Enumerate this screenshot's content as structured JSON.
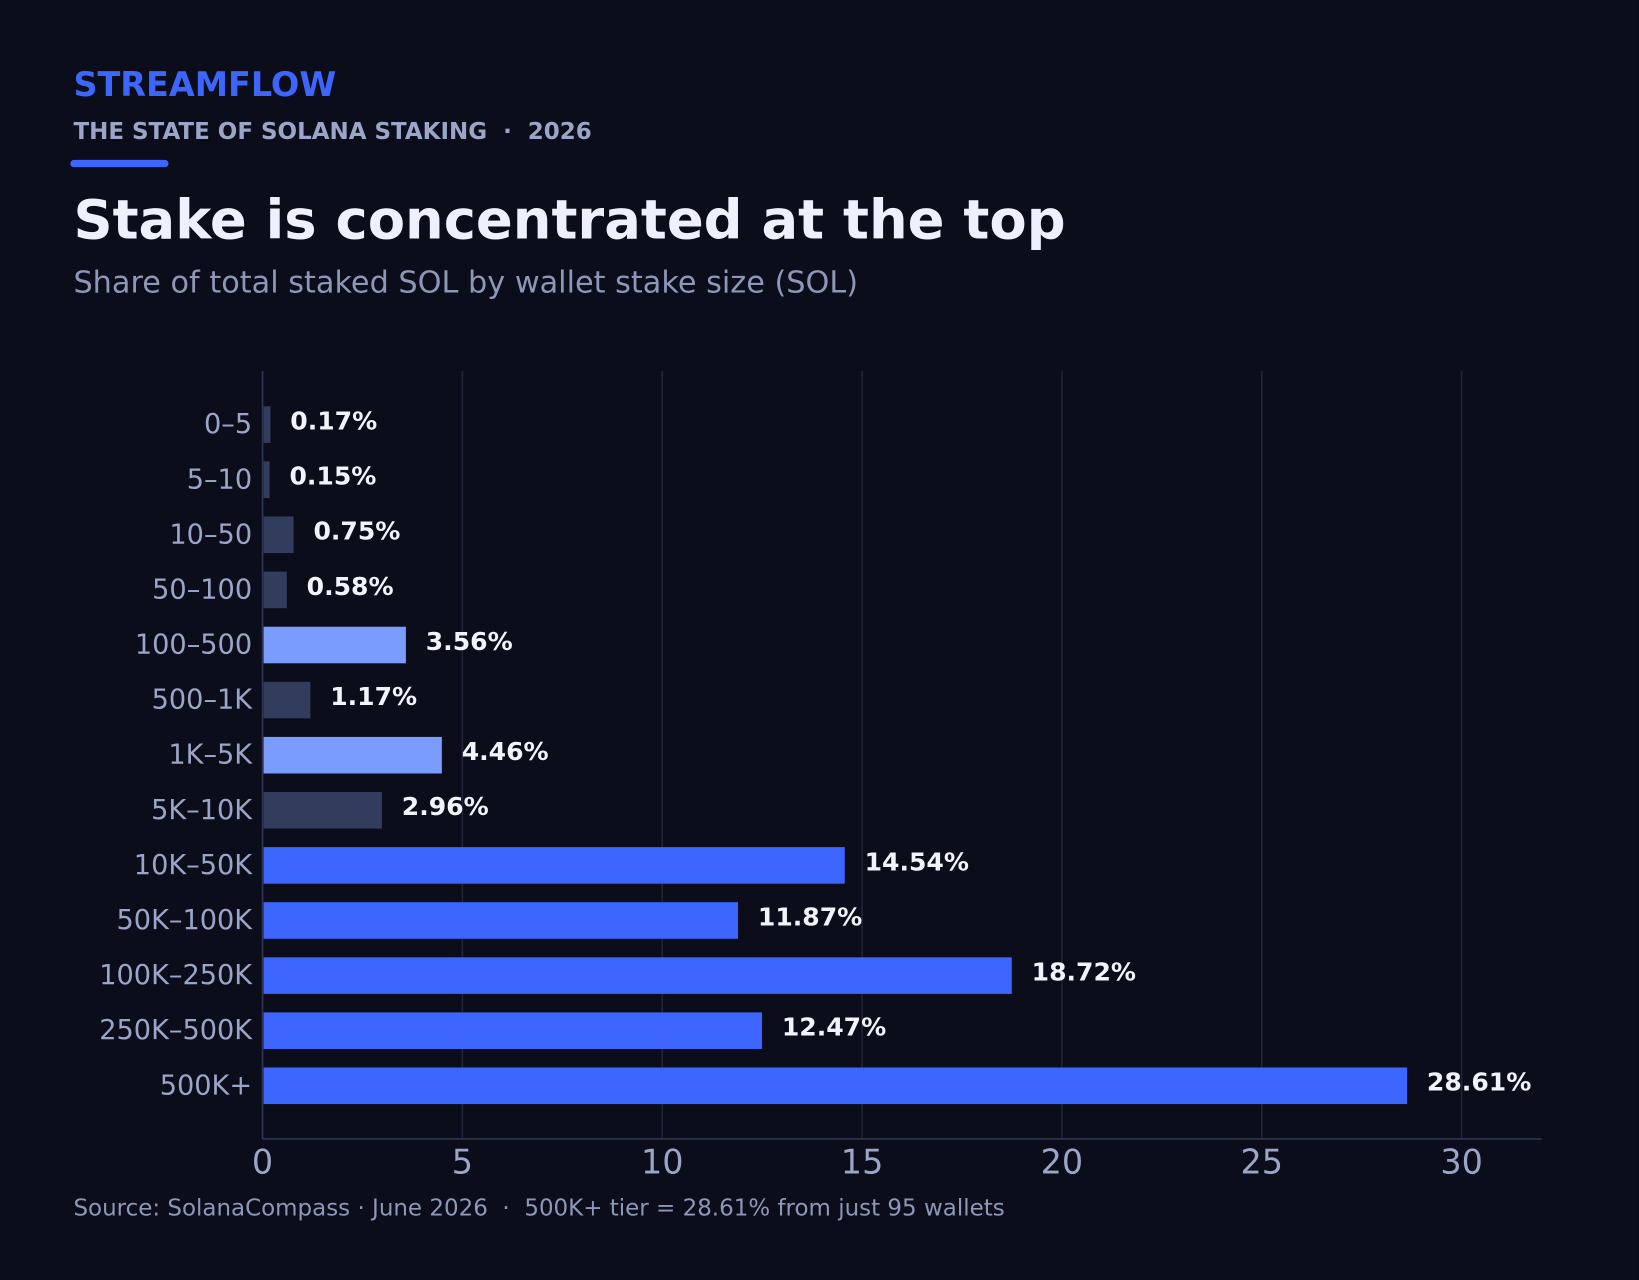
{
  "brand": "STREAMFLOW",
  "kicker": "THE STATE OF SOLANA STAKING  ·  2026",
  "chart_data": {
    "type": "barh",
    "title": "Stake is concentrated at the top",
    "subtitle": "Share of total staked SOL by wallet stake size (SOL)",
    "source": "Source: SolanaCompass · June 2026  ·  500K+ tier = 28.61% from just 95 wallets",
    "categories": [
      "0–5",
      "5–10",
      "10–50",
      "50–100",
      "100–500",
      "500–1K",
      "1K–5K",
      "5K–10K",
      "10K–50K",
      "50K–100K",
      "100K–250K",
      "250K–500K",
      "500K+"
    ],
    "values": [
      0.17,
      0.15,
      0.75,
      0.58,
      3.56,
      1.17,
      4.46,
      2.96,
      14.54,
      11.87,
      18.72,
      12.47,
      28.61
    ],
    "value_labels": [
      "0.17%",
      "0.15%",
      "0.75%",
      "0.58%",
      "3.56%",
      "1.17%",
      "4.46%",
      "2.96%",
      "14.54%",
      "11.87%",
      "18.72%",
      "12.47%",
      "28.61%"
    ],
    "colors": [
      "#323c5c",
      "#323c5c",
      "#323c5c",
      "#323c5c",
      "#7b9cff",
      "#323c5c",
      "#7b9cff",
      "#323c5c",
      "#3d66ff",
      "#3d66ff",
      "#3d66ff",
      "#3d66ff",
      "#3d66ff"
    ],
    "xlim": [
      0,
      32
    ],
    "xticks": [
      0,
      5,
      10,
      15,
      20,
      25,
      30
    ],
    "grid": true
  }
}
